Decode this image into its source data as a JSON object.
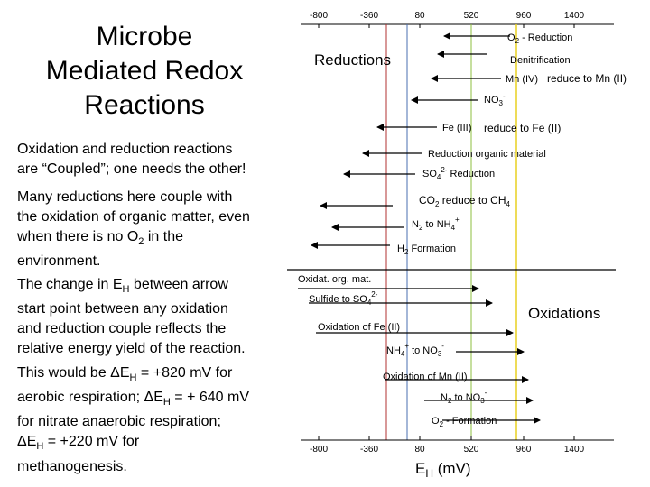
{
  "title": [
    "Microbe",
    "Mediated Redox",
    "Reactions"
  ],
  "paragraphs": {
    "p1": [
      "Oxidation and reduction reactions",
      "are “Coupled”; one needs the other!"
    ],
    "p2": [
      "Many reductions here couple with",
      "the oxidation of organic matter, even",
      "when there is no O",
      "2",
      " in the",
      "environment."
    ],
    "p3": [
      "The change in E",
      "H",
      " between arrow",
      "start point between any oxidation",
      "and reduction couple reflects the",
      "relative energy yield of the reaction."
    ],
    "p4": [
      "This would be ΔE",
      "H",
      " = +820 mV for",
      "aerobic respiration; ΔE",
      "H",
      " = + 640 mV",
      "for nitrate anaerobic respiration;",
      "ΔE",
      "H",
      " = +220 mV for",
      "methanogenesis."
    ]
  },
  "axis": {
    "ticks": [
      "-800",
      "-360",
      "80",
      "520",
      "960",
      "1400"
    ],
    "label_main": "E",
    "label_sub": "H",
    "label_unit": " (mV)"
  },
  "sections": {
    "reductions": "Reductions",
    "oxidations": "Oxidations"
  },
  "reductions": [
    {
      "parts": [
        "O",
        "2",
        " - Reduction"
      ]
    },
    {
      "parts": [
        "Denitrification"
      ]
    },
    {
      "parts": [
        "Mn (IV)"
      ]
    },
    {
      "parts": [
        "reduce to Mn (II)"
      ]
    },
    {
      "parts": [
        "NO",
        "3",
        "-",
        " Reduction"
      ]
    },
    {
      "parts": [
        "Fe (III)"
      ]
    },
    {
      "parts": [
        "reduce to Fe (II)"
      ]
    },
    {
      "parts": [
        "Reduction organic material"
      ]
    },
    {
      "parts": [
        "SO",
        "4",
        "2-",
        " Reduction"
      ]
    },
    {
      "parts": [
        "CO",
        "2",
        " reduce to CH",
        "4"
      ]
    },
    {
      "parts": [
        "N",
        "2",
        " to NH",
        "4",
        "+"
      ]
    },
    {
      "parts": [
        "H",
        "2",
        " Formation"
      ]
    }
  ],
  "oxidations": [
    {
      "parts": [
        "Oxidat. org. mat."
      ]
    },
    {
      "parts": [
        "Sulfide to SO",
        "4",
        "2-"
      ]
    },
    {
      "parts": [
        "Oxidation of Fe (II)"
      ]
    },
    {
      "parts": [
        "NH",
        "4",
        "+",
        " to NO",
        "3",
        "-"
      ]
    },
    {
      "parts": [
        "Oxidation of Mn (II)"
      ]
    },
    {
      "parts": [
        "N",
        "2",
        " to NO",
        "3",
        "-"
      ]
    },
    {
      "parts": [
        "O",
        "2",
        " - Formation"
      ]
    }
  ],
  "colors": {
    "line_minus360": "#b03030",
    "line_80": "#4a6fb0",
    "line_520": "#8cbf3f",
    "line_960": "#e8d020"
  }
}
